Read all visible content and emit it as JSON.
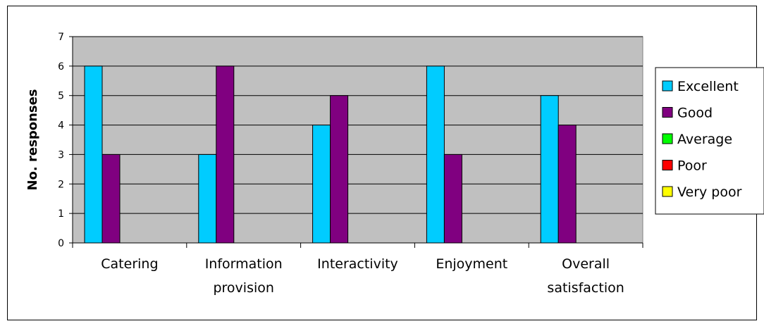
{
  "chart_data": {
    "type": "bar",
    "title": "",
    "xlabel": "",
    "ylabel": "No. responses",
    "ylim": [
      0,
      7
    ],
    "yticks": [
      0,
      1,
      2,
      3,
      4,
      5,
      6,
      7
    ],
    "categories": [
      [
        "Catering"
      ],
      [
        "Information",
        "provision"
      ],
      [
        "Interactivity"
      ],
      [
        "Enjoyment"
      ],
      [
        "Overall",
        "satisfaction"
      ]
    ],
    "series": [
      {
        "name": "Excellent",
        "color": "#00ccff",
        "values": [
          6,
          3,
          4,
          6,
          5
        ]
      },
      {
        "name": "Good",
        "color": "#800080",
        "values": [
          3,
          6,
          5,
          3,
          4
        ]
      },
      {
        "name": "Average",
        "color": "#00ff00",
        "values": [
          0,
          0,
          0,
          0,
          0
        ]
      },
      {
        "name": "Poor",
        "color": "#ff0000",
        "values": [
          0,
          0,
          0,
          0,
          0
        ]
      },
      {
        "name": "Very poor",
        "color": "#ffff00",
        "values": [
          0,
          0,
          0,
          0,
          0
        ]
      }
    ],
    "grid": true,
    "plot_background": "#c0c0c0",
    "legend_position": "right"
  }
}
